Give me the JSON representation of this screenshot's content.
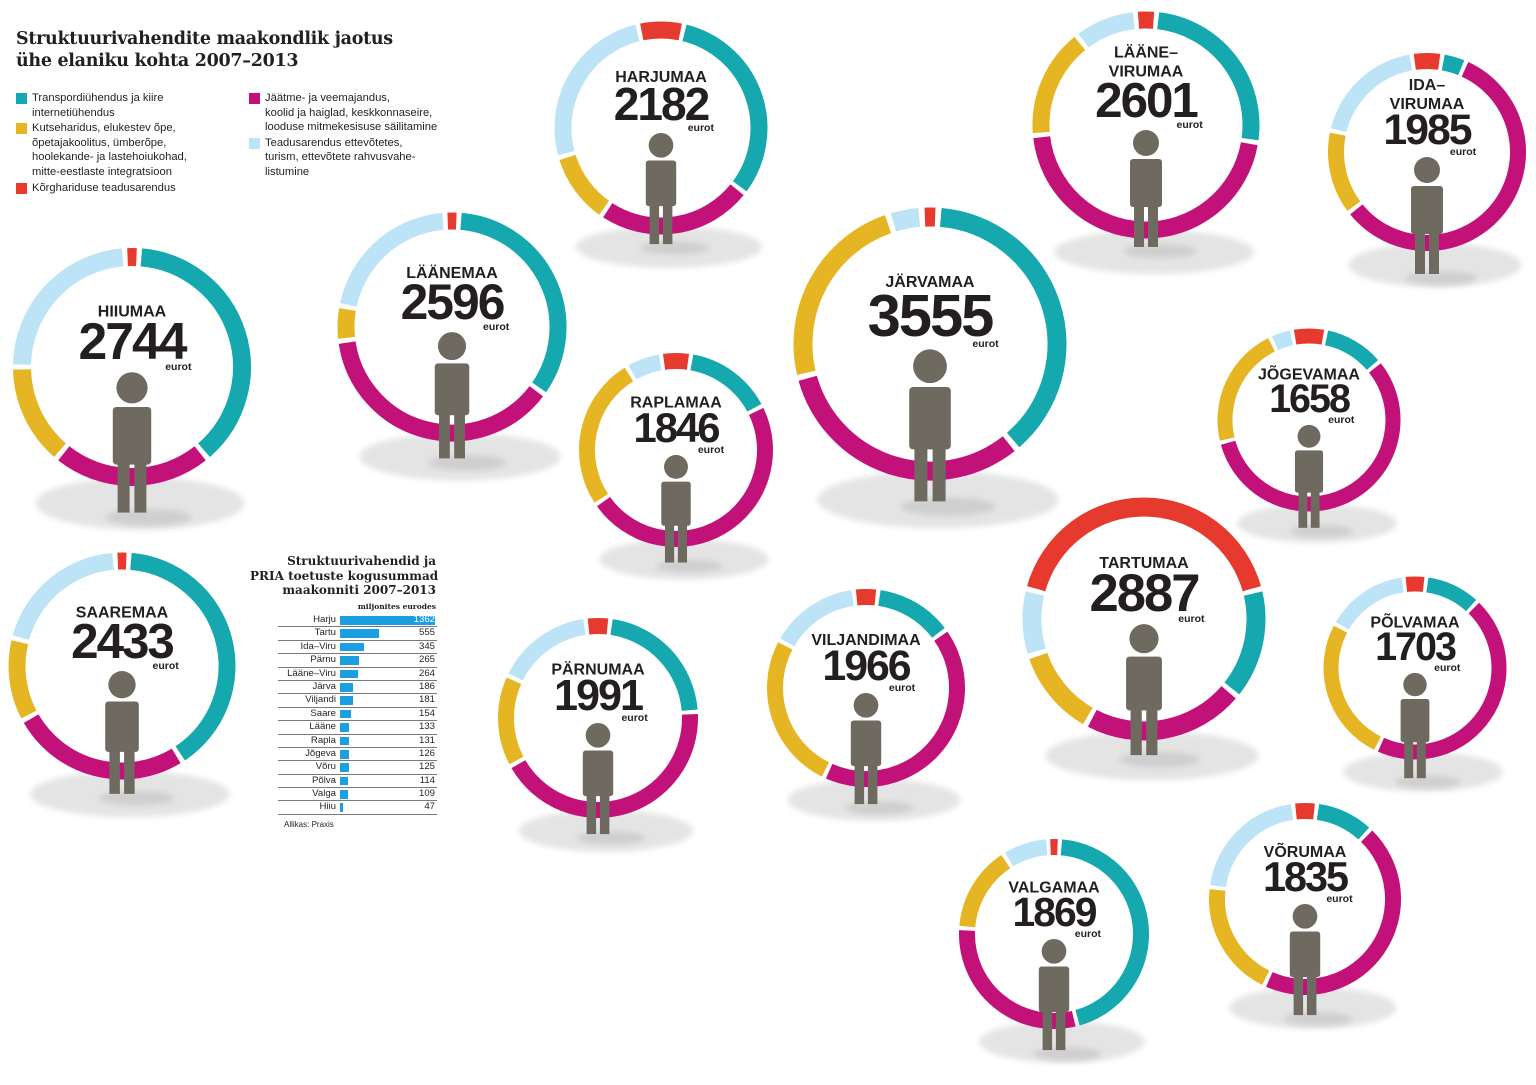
{
  "header": {
    "title_lines": [
      "Struktuurivahendite maakondlik jaotus",
      "ühe elaniku kohta 2007–2013"
    ]
  },
  "legend": [
    {
      "color": "#15a8ae",
      "lines": [
        "Transpordiühendus ja kiire",
        "internetiühendus"
      ]
    },
    {
      "color": "#e6b523",
      "lines": [
        "Kutseharidus, elukestev õpe,",
        "õpetajakoolitus, ümberõpe,",
        "hoolekande- ja lastehoiukohad,",
        "mitte-eestlaste integratsioon"
      ]
    },
    {
      "color": "#e63a2e",
      "lines": [
        "Kõrghariduse teadusarendus"
      ]
    },
    {
      "color": "#c3117a",
      "lines": [
        "Jäätme- ja veemajandus,",
        "koolid ja haiglad, keskkonnaseire,",
        "looduse mitmekesisuse säilitamine"
      ]
    },
    {
      "color": "#bde3f6",
      "lines": [
        "Teadusarendus ettevõtetes,",
        "turism, ettevõtete rahvusvahe-",
        "listumine"
      ]
    }
  ],
  "colors": {
    "transport": "#15a8ae",
    "education": "#e6b523",
    "higher_ed": "#e63a2e",
    "environment": "#c3117a",
    "enterprise": "#bde3f6",
    "figure": "#6e6a5f",
    "shadow": "#dcdcdc",
    "bar": "#1aa0e0"
  },
  "chart_data": [
    {
      "type": "donut",
      "title": "Struktuurivahendite maakondlik jaotus ühe elaniku kohta 2007–2013",
      "unit": "eurot",
      "segment_order": [
        "higher_ed",
        "transport",
        "environment",
        "education",
        "enterprise"
      ],
      "counties": [
        {
          "name_lines": [
            "HARJUMAA"
          ],
          "value": "2182",
          "shares": {
            "higher_ed": 0.07,
            "transport": 0.32,
            "environment": 0.24,
            "education": 0.11,
            "enterprise": 0.26
          }
        },
        {
          "name_lines": [
            "LÄÄNE–",
            "VIRUMAA"
          ],
          "value": "2601",
          "shares": {
            "higher_ed": 0.03,
            "transport": 0.26,
            "environment": 0.46,
            "education": 0.16,
            "enterprise": 0.09
          }
        },
        {
          "name_lines": [
            "IDA–",
            "VIRUMAA"
          ],
          "value": "1985",
          "shares": {
            "higher_ed": 0.05,
            "transport": 0.04,
            "environment": 0.58,
            "education": 0.14,
            "enterprise": 0.19
          }
        },
        {
          "name_lines": [
            "LÄÄNEMAA"
          ],
          "value": "2596",
          "shares": {
            "higher_ed": 0.02,
            "transport": 0.34,
            "environment": 0.38,
            "education": 0.05,
            "enterprise": 0.21
          }
        },
        {
          "name_lines": [
            "HIIUMAA"
          ],
          "value": "2744",
          "shares": {
            "higher_ed": 0.02,
            "transport": 0.38,
            "environment": 0.22,
            "education": 0.14,
            "enterprise": 0.24
          }
        },
        {
          "name_lines": [
            "JÄRVAMAA"
          ],
          "value": "3555",
          "shares": {
            "higher_ed": 0.02,
            "transport": 0.38,
            "environment": 0.32,
            "education": 0.24,
            "enterprise": 0.04
          }
        },
        {
          "name_lines": [
            "RAPLAMAA"
          ],
          "value": "1846",
          "shares": {
            "higher_ed": 0.05,
            "transport": 0.15,
            "environment": 0.48,
            "education": 0.26,
            "enterprise": 0.06
          }
        },
        {
          "name_lines": [
            "JÕGEVAMAA"
          ],
          "value": "1658",
          "shares": {
            "higher_ed": 0.06,
            "transport": 0.11,
            "environment": 0.57,
            "education": 0.22,
            "enterprise": 0.04
          }
        },
        {
          "name_lines": [
            "SAAREMAA"
          ],
          "value": "2433",
          "shares": {
            "higher_ed": 0.02,
            "transport": 0.4,
            "environment": 0.26,
            "education": 0.12,
            "enterprise": 0.2
          }
        },
        {
          "name_lines": [
            "PÄRNUMAA"
          ],
          "value": "1991",
          "shares": {
            "higher_ed": 0.04,
            "transport": 0.22,
            "environment": 0.43,
            "education": 0.15,
            "enterprise": 0.16
          }
        },
        {
          "name_lines": [
            "VILJANDIMAA"
          ],
          "value": "1966",
          "shares": {
            "higher_ed": 0.04,
            "transport": 0.13,
            "environment": 0.42,
            "education": 0.26,
            "enterprise": 0.15
          }
        },
        {
          "name_lines": [
            "TARTUMAA"
          ],
          "value": "2887",
          "shares": {
            "higher_ed": 0.42,
            "transport": 0.15,
            "environment": 0.22,
            "education": 0.12,
            "enterprise": 0.09
          }
        },
        {
          "name_lines": [
            "PÕLVAMAA"
          ],
          "value": "1703",
          "shares": {
            "higher_ed": 0.04,
            "transport": 0.1,
            "environment": 0.45,
            "education": 0.26,
            "enterprise": 0.15
          }
        },
        {
          "name_lines": [
            "VALGAMAA"
          ],
          "value": "1869",
          "shares": {
            "higher_ed": 0.02,
            "transport": 0.45,
            "environment": 0.3,
            "education": 0.15,
            "enterprise": 0.08
          }
        },
        {
          "name_lines": [
            "VÕRUMAA"
          ],
          "value": "1835",
          "shares": {
            "higher_ed": 0.04,
            "transport": 0.1,
            "environment": 0.45,
            "education": 0.2,
            "enterprise": 0.21
          }
        }
      ]
    },
    {
      "type": "bar",
      "title_lines": [
        "Struktuurivahendid ja",
        "PRIA toetuste kogusummad",
        "maakonniti 2007–2013"
      ],
      "unit": "miljonites eurodes",
      "xlim": [
        0,
        1362
      ],
      "categories": [
        "Harju",
        "Tartu",
        "Ida–Viru",
        "Pärnu",
        "Lääne–Viru",
        "Järva",
        "Viljandi",
        "Saare",
        "Lääne",
        "Rapla",
        "Jõgeva",
        "Võru",
        "Põlva",
        "Valga",
        "Hiiu"
      ],
      "values": [
        1362,
        555,
        345,
        265,
        264,
        186,
        181,
        154,
        133,
        131,
        126,
        125,
        114,
        109,
        47
      ],
      "source": "Allikas: Praxis"
    }
  ]
}
